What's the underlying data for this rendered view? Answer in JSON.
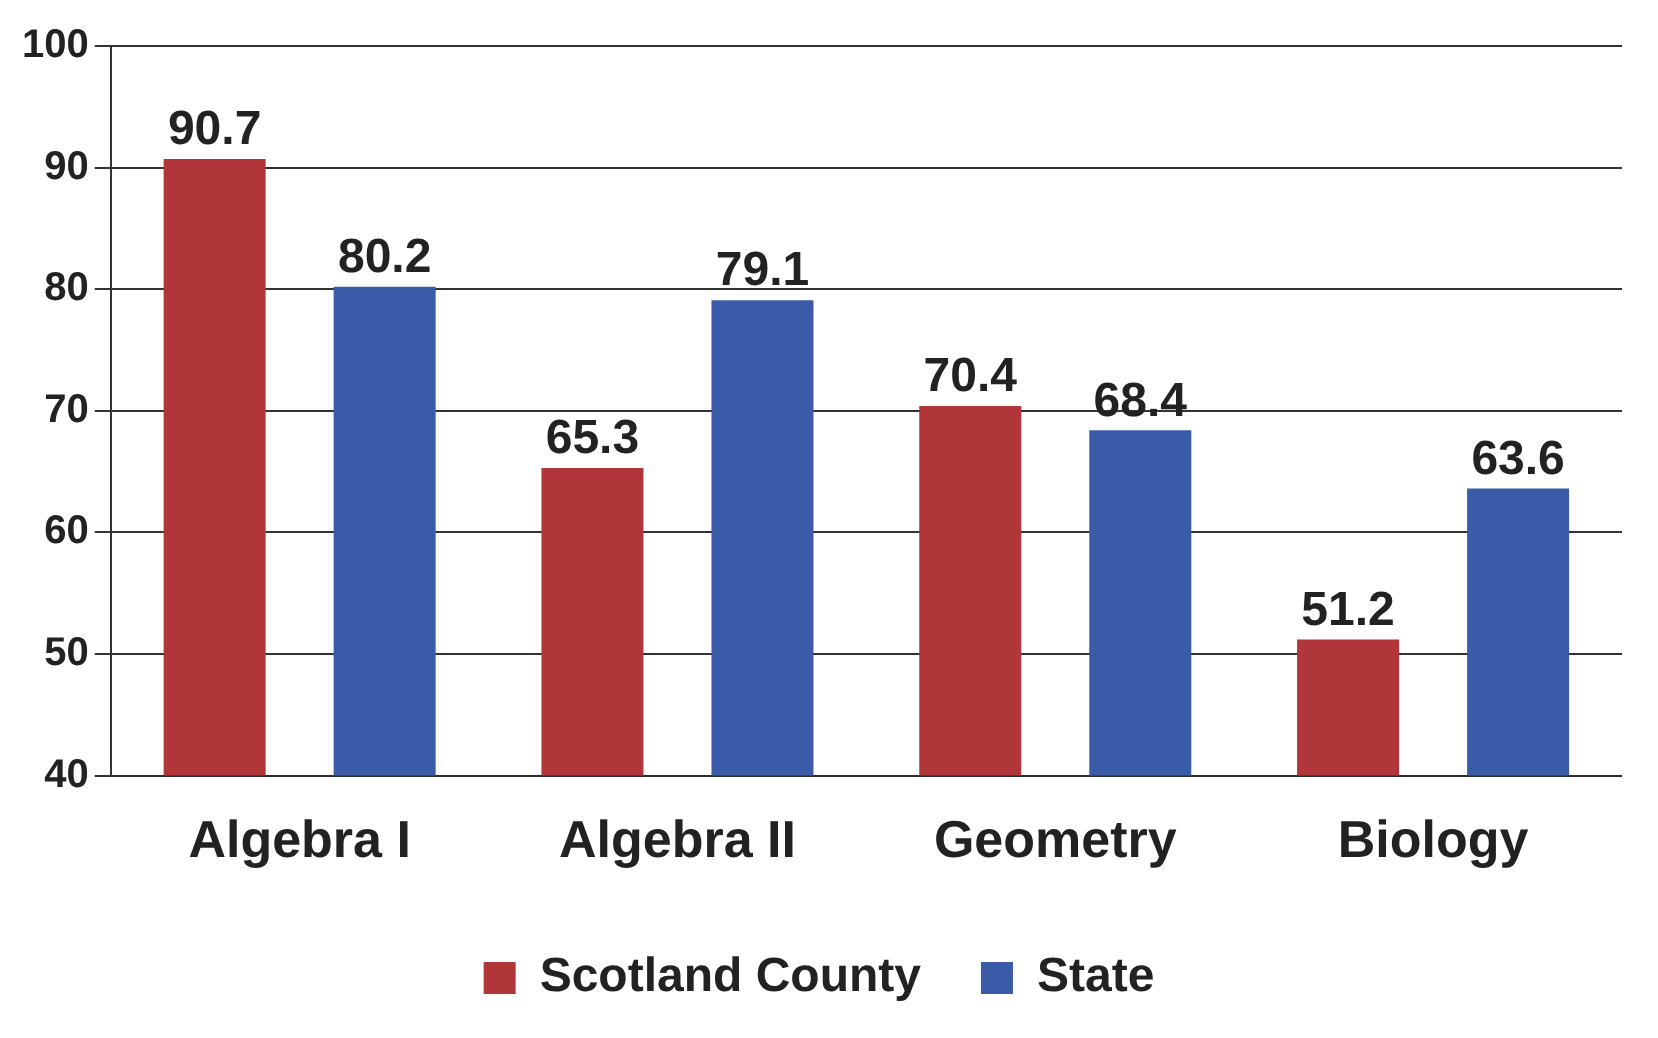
{
  "chart_data": {
    "type": "bar",
    "categories": [
      "Algebra I",
      "Algebra II",
      "Geometry",
      "Biology"
    ],
    "series": [
      {
        "name": "Scotland County",
        "color": "#b0363a",
        "values": [
          90.7,
          65.3,
          70.4,
          51.2
        ]
      },
      {
        "name": "State",
        "color": "#3a5ca8",
        "values": [
          80.2,
          79.1,
          68.4,
          63.6
        ]
      }
    ],
    "ylim": [
      40,
      100
    ],
    "yticks": [
      40,
      50,
      60,
      70,
      80,
      90,
      100
    ],
    "grid": "y",
    "legend": "bottom",
    "data_labels": true
  }
}
